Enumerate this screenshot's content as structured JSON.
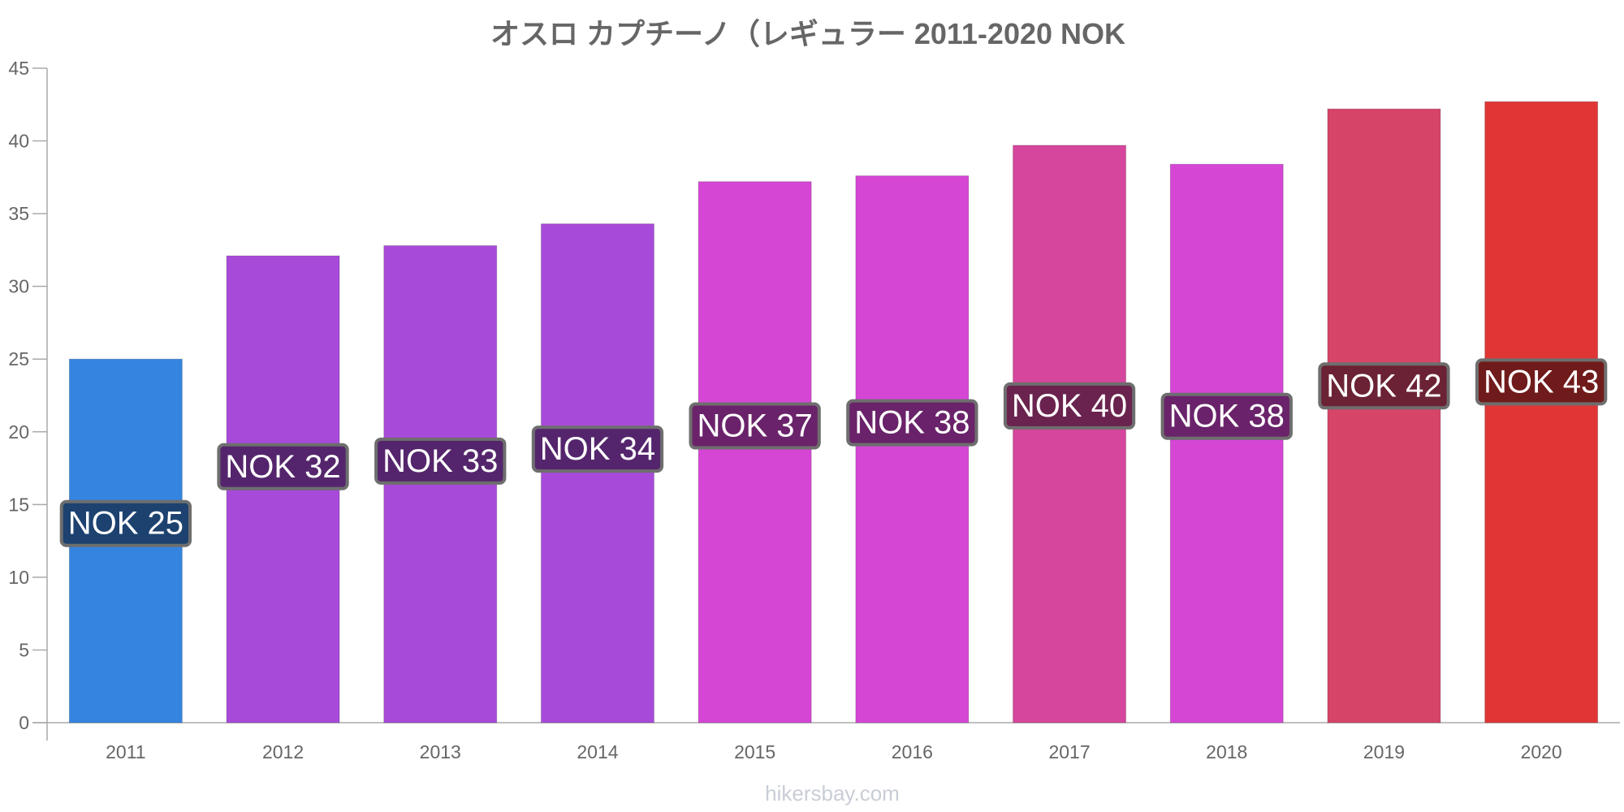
{
  "chart_data": {
    "type": "bar",
    "title": "オスロ カプチーノ（レギュラー 2011-2020 NOK",
    "categories": [
      "2011",
      "2012",
      "2013",
      "2014",
      "2015",
      "2016",
      "2017",
      "2018",
      "2019",
      "2020"
    ],
    "values": [
      25.0,
      32.1,
      32.8,
      34.3,
      37.2,
      37.6,
      39.7,
      38.4,
      42.2,
      42.7
    ],
    "data_labels": [
      "NOK 25",
      "NOK 32",
      "NOK 33",
      "NOK 34",
      "NOK 37",
      "NOK 38",
      "NOK 40",
      "NOK 38",
      "NOK 42",
      "NOK 43"
    ],
    "colors": [
      "#3584e0",
      "#a84ad9",
      "#a84ad9",
      "#a84ad9",
      "#d546d5",
      "#d546d5",
      "#d5469c",
      "#d546d5",
      "#d64468",
      "#e03535"
    ],
    "label_bg_colors": [
      "#1d4270",
      "#54256c",
      "#54256c",
      "#54256c",
      "#6a236a",
      "#6a236a",
      "#6a234e",
      "#6a236a",
      "#6b2234",
      "#701b1b"
    ],
    "ylim": [
      0,
      45
    ],
    "yticks": [
      0,
      5,
      10,
      15,
      20,
      25,
      30,
      35,
      40,
      45
    ],
    "xlabel": "",
    "ylabel": "",
    "grid": false,
    "legend": "none"
  },
  "watermark": "hikersbay.com"
}
